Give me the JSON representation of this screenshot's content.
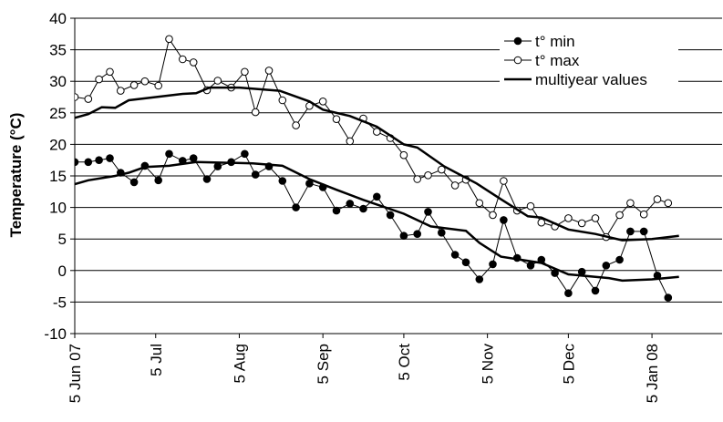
{
  "chart_data": {
    "type": "line",
    "title": "",
    "xlabel": "",
    "ylabel": "Temperature (°C)",
    "ylim": [
      -10,
      40
    ],
    "yticks": [
      "40",
      "35",
      "30",
      "25",
      "20",
      "15",
      "10",
      "5",
      "0",
      "-5",
      "-10"
    ],
    "xlim": [
      "2007-06-05",
      "2008-01-31"
    ],
    "xticks": [
      {
        "date": "2007-06-05",
        "label": "5 Jun 07"
      },
      {
        "date": "2007-07-05",
        "label": "5 Jul"
      },
      {
        "date": "2007-08-05",
        "label": "5 Aug"
      },
      {
        "date": "2007-09-05",
        "label": "5 Sep"
      },
      {
        "date": "2007-10-05",
        "label": "5 Oct"
      },
      {
        "date": "2007-11-05",
        "label": "5 Nov"
      },
      {
        "date": "2007-12-05",
        "label": "5 Dec"
      },
      {
        "date": "2008-01-05",
        "label": "5 Jan 08"
      }
    ],
    "grid": "horizontal",
    "legend_position": "top-right",
    "series": [
      {
        "name": "t° min",
        "marker": "filled-circle",
        "color": "#000000",
        "points": [
          [
            "2007-06-05",
            17.2
          ],
          [
            "2007-06-10",
            17.2
          ],
          [
            "2007-06-14",
            17.5
          ],
          [
            "2007-06-18",
            17.8
          ],
          [
            "2007-06-22",
            15.5
          ],
          [
            "2007-06-27",
            14.0
          ],
          [
            "2007-07-01",
            16.6
          ],
          [
            "2007-07-06",
            14.3
          ],
          [
            "2007-07-10",
            18.5
          ],
          [
            "2007-07-15",
            17.4
          ],
          [
            "2007-07-19",
            17.8
          ],
          [
            "2007-07-24",
            14.5
          ],
          [
            "2007-07-28",
            16.5
          ],
          [
            "2007-08-02",
            17.2
          ],
          [
            "2007-08-07",
            18.5
          ],
          [
            "2007-08-11",
            15.2
          ],
          [
            "2007-08-16",
            16.5
          ],
          [
            "2007-08-21",
            14.2
          ],
          [
            "2007-08-26",
            10.0
          ],
          [
            "2007-08-31",
            13.8
          ],
          [
            "2007-09-05",
            13.2
          ],
          [
            "2007-09-10",
            9.5
          ],
          [
            "2007-09-15",
            10.6
          ],
          [
            "2007-09-20",
            9.8
          ],
          [
            "2007-09-25",
            11.7
          ],
          [
            "2007-09-30",
            8.8
          ],
          [
            "2007-10-05",
            5.5
          ],
          [
            "2007-10-10",
            5.8
          ],
          [
            "2007-10-14",
            9.3
          ],
          [
            "2007-10-19",
            6.0
          ],
          [
            "2007-10-24",
            2.5
          ],
          [
            "2007-10-28",
            1.3
          ],
          [
            "2007-11-02",
            -1.4
          ],
          [
            "2007-11-07",
            1.0
          ],
          [
            "2007-11-11",
            8.0
          ],
          [
            "2007-11-16",
            2.0
          ],
          [
            "2007-11-21",
            0.8
          ],
          [
            "2007-11-25",
            1.7
          ],
          [
            "2007-11-30",
            -0.4
          ],
          [
            "2007-12-05",
            -3.6
          ],
          [
            "2007-12-10",
            -0.2
          ],
          [
            "2007-12-15",
            -3.2
          ],
          [
            "2007-12-19",
            0.8
          ],
          [
            "2007-12-24",
            1.7
          ],
          [
            "2007-12-28",
            6.2
          ],
          [
            "2008-01-02",
            6.2
          ],
          [
            "2008-01-07",
            -0.8
          ],
          [
            "2008-01-11",
            -4.3
          ]
        ]
      },
      {
        "name": "t° max",
        "marker": "open-circle",
        "color": "#000000",
        "points": [
          [
            "2007-06-05",
            27.5
          ],
          [
            "2007-06-10",
            27.2
          ],
          [
            "2007-06-14",
            30.3
          ],
          [
            "2007-06-18",
            31.5
          ],
          [
            "2007-06-22",
            28.5
          ],
          [
            "2007-06-27",
            29.4
          ],
          [
            "2007-07-01",
            30.0
          ],
          [
            "2007-07-06",
            29.3
          ],
          [
            "2007-07-10",
            36.7
          ],
          [
            "2007-07-15",
            33.5
          ],
          [
            "2007-07-19",
            33.0
          ],
          [
            "2007-07-24",
            28.6
          ],
          [
            "2007-07-28",
            30.1
          ],
          [
            "2007-08-02",
            29.0
          ],
          [
            "2007-08-07",
            31.5
          ],
          [
            "2007-08-11",
            25.1
          ],
          [
            "2007-08-16",
            31.7
          ],
          [
            "2007-08-21",
            27.0
          ],
          [
            "2007-08-26",
            23.0
          ],
          [
            "2007-08-31",
            26.1
          ],
          [
            "2007-09-05",
            26.8
          ],
          [
            "2007-09-10",
            24.0
          ],
          [
            "2007-09-15",
            20.5
          ],
          [
            "2007-09-20",
            24.1
          ],
          [
            "2007-09-25",
            22.0
          ],
          [
            "2007-09-30",
            21.0
          ],
          [
            "2007-10-05",
            18.3
          ],
          [
            "2007-10-10",
            14.5
          ],
          [
            "2007-10-14",
            15.1
          ],
          [
            "2007-10-19",
            16.0
          ],
          [
            "2007-10-24",
            13.5
          ],
          [
            "2007-10-28",
            14.4
          ],
          [
            "2007-11-02",
            10.7
          ],
          [
            "2007-11-07",
            8.8
          ],
          [
            "2007-11-11",
            14.2
          ],
          [
            "2007-11-16",
            9.5
          ],
          [
            "2007-11-21",
            10.2
          ],
          [
            "2007-11-25",
            7.6
          ],
          [
            "2007-11-30",
            7.0
          ],
          [
            "2007-12-05",
            8.3
          ],
          [
            "2007-12-10",
            7.5
          ],
          [
            "2007-12-15",
            8.3
          ],
          [
            "2007-12-19",
            5.3
          ],
          [
            "2007-12-24",
            8.8
          ],
          [
            "2007-12-28",
            10.7
          ],
          [
            "2008-01-02",
            8.9
          ],
          [
            "2008-01-07",
            11.3
          ],
          [
            "2008-01-11",
            10.7
          ]
        ]
      },
      {
        "name": "multiyear values",
        "marker": "none",
        "color": "#000000",
        "segments": [
          [
            [
              "2007-06-05",
              24.2
            ],
            [
              "2007-06-10",
              24.8
            ],
            [
              "2007-06-15",
              25.9
            ],
            [
              "2007-06-20",
              25.8
            ],
            [
              "2007-06-25",
              27.0
            ],
            [
              "2007-07-05",
              27.5
            ],
            [
              "2007-07-15",
              28.0
            ],
            [
              "2007-07-20",
              28.1
            ],
            [
              "2007-07-25",
              29.0
            ],
            [
              "2007-08-05",
              29.0
            ],
            [
              "2007-08-20",
              28.5
            ],
            [
              "2007-08-31",
              26.8
            ],
            [
              "2007-09-05",
              25.5
            ],
            [
              "2007-09-15",
              24.5
            ],
            [
              "2007-09-25",
              22.8
            ],
            [
              "2007-10-05",
              20.0
            ],
            [
              "2007-10-10",
              19.5
            ],
            [
              "2007-10-20",
              16.5
            ],
            [
              "2007-11-01",
              13.8
            ],
            [
              "2007-11-10",
              11.3
            ],
            [
              "2007-11-20",
              8.6
            ],
            [
              "2007-11-25",
              8.4
            ],
            [
              "2007-12-05",
              6.5
            ],
            [
              "2007-12-15",
              5.8
            ],
            [
              "2007-12-25",
              4.8
            ],
            [
              "2008-01-05",
              5.0
            ],
            [
              "2008-01-15",
              5.5
            ]
          ],
          [
            [
              "2007-06-05",
              13.7
            ],
            [
              "2007-06-10",
              14.3
            ],
            [
              "2007-06-20",
              15.0
            ],
            [
              "2007-06-25",
              15.5
            ],
            [
              "2007-07-01",
              16.4
            ],
            [
              "2007-07-10",
              16.6
            ],
            [
              "2007-07-20",
              17.2
            ],
            [
              "2007-08-10",
              17.0
            ],
            [
              "2007-08-21",
              16.6
            ],
            [
              "2007-08-31",
              14.5
            ],
            [
              "2007-09-10",
              12.8
            ],
            [
              "2007-09-20",
              11.2
            ],
            [
              "2007-10-05",
              9.0
            ],
            [
              "2007-10-15",
              7.0
            ],
            [
              "2007-10-28",
              6.3
            ],
            [
              "2007-11-02",
              4.4
            ],
            [
              "2007-11-10",
              2.2
            ],
            [
              "2007-11-25",
              1.2
            ],
            [
              "2007-12-05",
              -0.6
            ],
            [
              "2007-12-15",
              -1.0
            ],
            [
              "2007-12-20",
              -1.2
            ],
            [
              "2007-12-25",
              -1.6
            ],
            [
              "2008-01-05",
              -1.4
            ],
            [
              "2008-01-15",
              -1.0
            ]
          ]
        ]
      }
    ]
  }
}
